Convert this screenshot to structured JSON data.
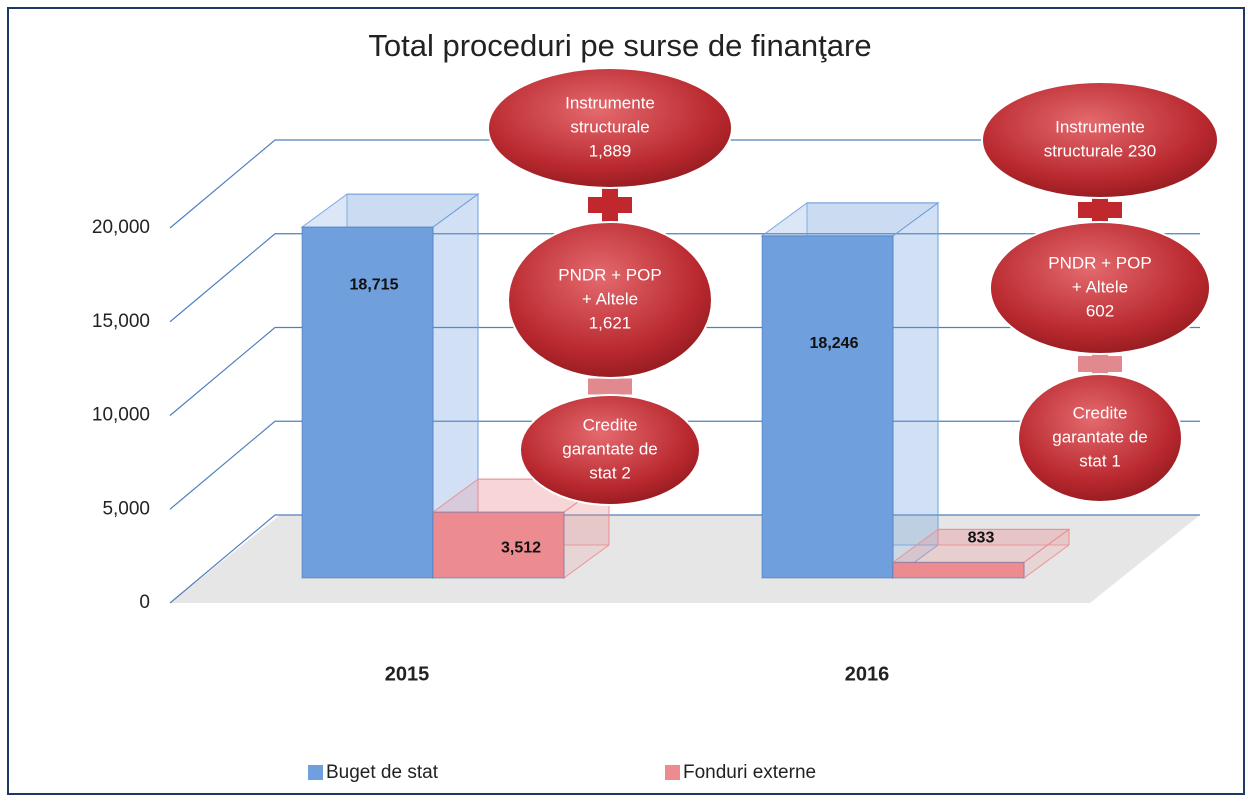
{
  "chart_data": {
    "type": "bar3d",
    "title": "Total proceduri pe surse de finanţare",
    "categories": [
      "2015",
      "2016"
    ],
    "series": [
      {
        "name": "Buget de stat",
        "color": "#6f9fdc",
        "values": [
          18715,
          18246
        ],
        "value_labels": [
          "18,715",
          "18,246"
        ]
      },
      {
        "name": "Fonduri externe",
        "color": "#ec8c90",
        "values": [
          3512,
          833
        ],
        "value_labels": [
          "3,512",
          "833"
        ]
      }
    ],
    "ylim": [
      0,
      20000
    ],
    "yticks": [
      0,
      {
        "value": 5000,
        "label": "5,000"
      },
      {
        "value": 10000,
        "label": "10,000"
      },
      {
        "value": 15000,
        "label": "15,000"
      },
      {
        "value": 20000,
        "label": "20,000"
      }
    ],
    "grid": true,
    "legend": "bottom",
    "annotations": [
      [
        [
          "Instrumente",
          "structurale",
          "1,889"
        ],
        [
          "PNDR + POP",
          "+ Altele",
          "1,621"
        ],
        [
          "Credite",
          "garantate de",
          "stat 2"
        ]
      ],
      [
        [
          "Instrumente",
          "structurale 230"
        ],
        [
          "PNDR + POP",
          "+ Altele",
          "602"
        ],
        [
          "Credite",
          "garantate de",
          "stat 1"
        ]
      ]
    ]
  }
}
